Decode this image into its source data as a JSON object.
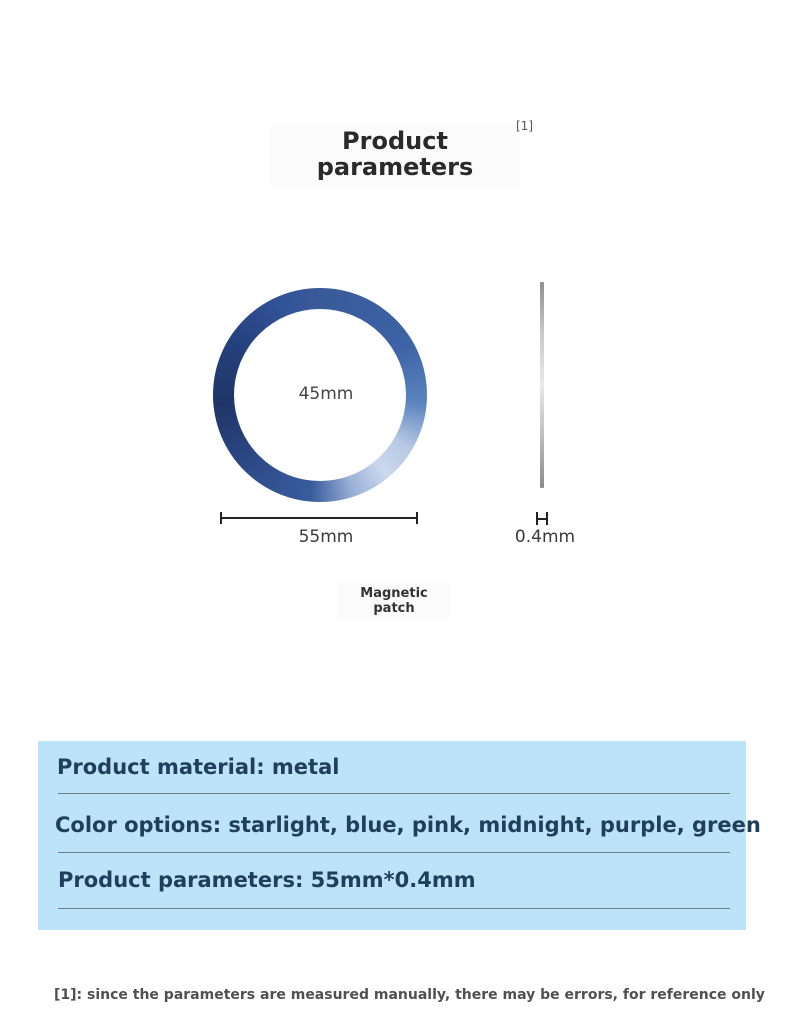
{
  "header": {
    "title_line1": "Product",
    "title_line2": "parameters",
    "note_ref": "[1]"
  },
  "diagram": {
    "inner_diameter": "45mm",
    "outer_diameter": "55mm",
    "thickness": "0.4mm",
    "caption_line1": "Magnetic",
    "caption_line2": "patch",
    "ring_colors": [
      "#1f3568",
      "#3a5a98",
      "#cbd8ec"
    ]
  },
  "specs": {
    "material": "Product material: metal",
    "colors": "Color options: starlight, blue, pink, midnight, purple, green",
    "parameters": "Product parameters: 55mm*0.4mm",
    "panel_color": "#bce3f8"
  },
  "footnote": "[1]: since the parameters are measured manually, there may be errors, for reference only"
}
